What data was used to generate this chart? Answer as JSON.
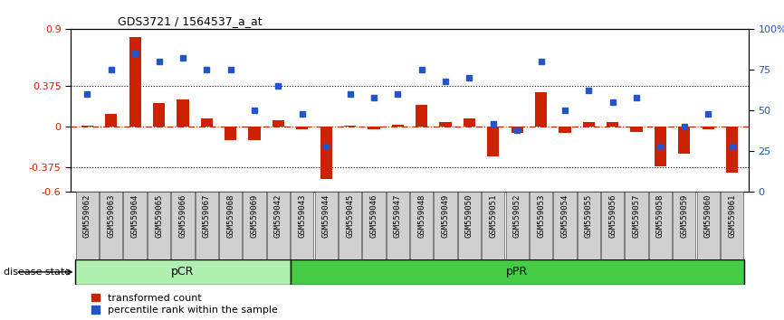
{
  "title": "GDS3721 / 1564537_a_at",
  "samples": [
    "GSM559062",
    "GSM559063",
    "GSM559064",
    "GSM559065",
    "GSM559066",
    "GSM559067",
    "GSM559068",
    "GSM559069",
    "GSM559042",
    "GSM559043",
    "GSM559044",
    "GSM559045",
    "GSM559046",
    "GSM559047",
    "GSM559048",
    "GSM559049",
    "GSM559050",
    "GSM559051",
    "GSM559052",
    "GSM559053",
    "GSM559054",
    "GSM559055",
    "GSM559056",
    "GSM559057",
    "GSM559058",
    "GSM559059",
    "GSM559060",
    "GSM559061"
  ],
  "transformed_count": [
    0.01,
    0.12,
    0.82,
    0.22,
    0.25,
    0.08,
    -0.12,
    -0.12,
    0.06,
    -0.02,
    -0.48,
    0.01,
    -0.02,
    0.02,
    0.2,
    0.04,
    0.08,
    -0.27,
    -0.06,
    0.32,
    -0.06,
    0.04,
    0.04,
    -0.05,
    -0.36,
    -0.25,
    -0.02,
    -0.42
  ],
  "percentile_rank": [
    60,
    75,
    85,
    80,
    82,
    75,
    75,
    50,
    65,
    48,
    28,
    60,
    58,
    60,
    75,
    68,
    70,
    42,
    38,
    80,
    50,
    62,
    55,
    58,
    28,
    40,
    48,
    28
  ],
  "pCR_count": 9,
  "pPR_count": 19,
  "ylim_left": [
    -0.6,
    0.9
  ],
  "yticks_left": [
    -0.6,
    -0.375,
    0.0,
    0.375,
    0.9
  ],
  "ytick_labels_left": [
    "-0.6",
    "-0.375",
    "0",
    "0.375",
    "0.9"
  ],
  "ylim_right": [
    0,
    100
  ],
  "yticks_right": [
    0,
    25,
    50,
    75,
    100
  ],
  "ytick_labels_right": [
    "0",
    "25",
    "50",
    "75",
    "100%"
  ],
  "bar_color": "#cc2200",
  "dot_color": "#2255cc",
  "zero_line_color": "#cc2200",
  "hline_color": "#000000",
  "hline_y_left": [
    0.375,
    -0.375
  ],
  "bg_color": "#ffffff",
  "pcr_color": "#b0f0b0",
  "ppr_color": "#44cc44",
  "label_transformed": "transformed count",
  "label_percentile": "percentile rank within the sample",
  "tick_bg_color": "#d0d0d0"
}
